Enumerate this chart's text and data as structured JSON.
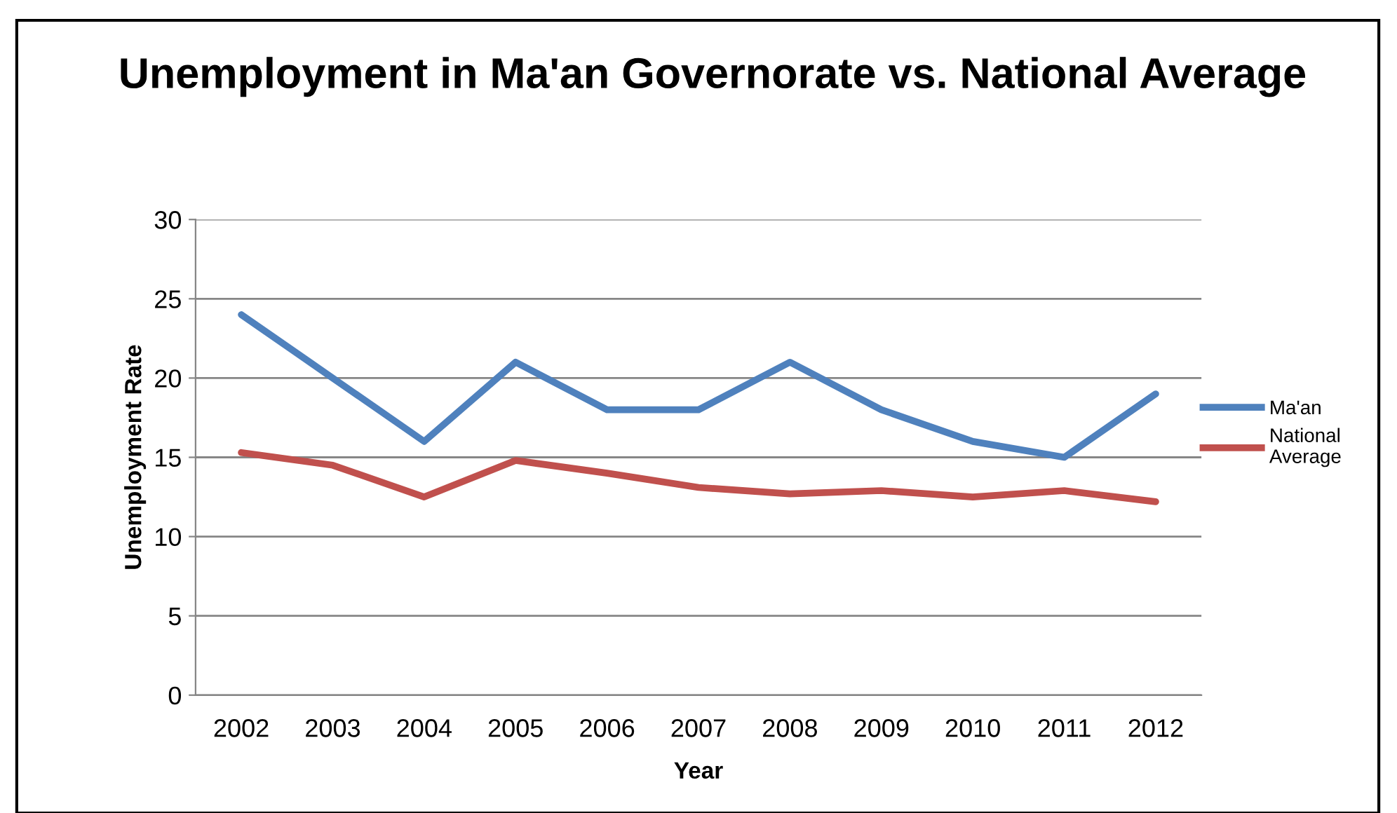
{
  "chart_data": {
    "type": "line",
    "title": "Unemployment in Ma'an Governorate vs. National Average",
    "xlabel": "Year",
    "ylabel": "Unemployment Rate",
    "categories": [
      "2002",
      "2003",
      "2004",
      "2005",
      "2006",
      "2007",
      "2008",
      "2009",
      "2010",
      "2011",
      "2012"
    ],
    "series": [
      {
        "name": "Ma'an",
        "color": "#4f81bd",
        "values": [
          24,
          20,
          16,
          21,
          18,
          18,
          21,
          18,
          16,
          15,
          19
        ]
      },
      {
        "name": "National Average",
        "color": "#c0504d",
        "values": [
          15.3,
          14.5,
          12.5,
          14.8,
          14,
          13.1,
          12.7,
          12.9,
          12.5,
          12.9,
          12.2
        ]
      }
    ],
    "ylim": [
      0,
      30
    ],
    "yticks": [
      0,
      5,
      10,
      15,
      20,
      25,
      30
    ],
    "grid": "y",
    "legend": "right",
    "marker": "none",
    "line_style": "solid"
  }
}
